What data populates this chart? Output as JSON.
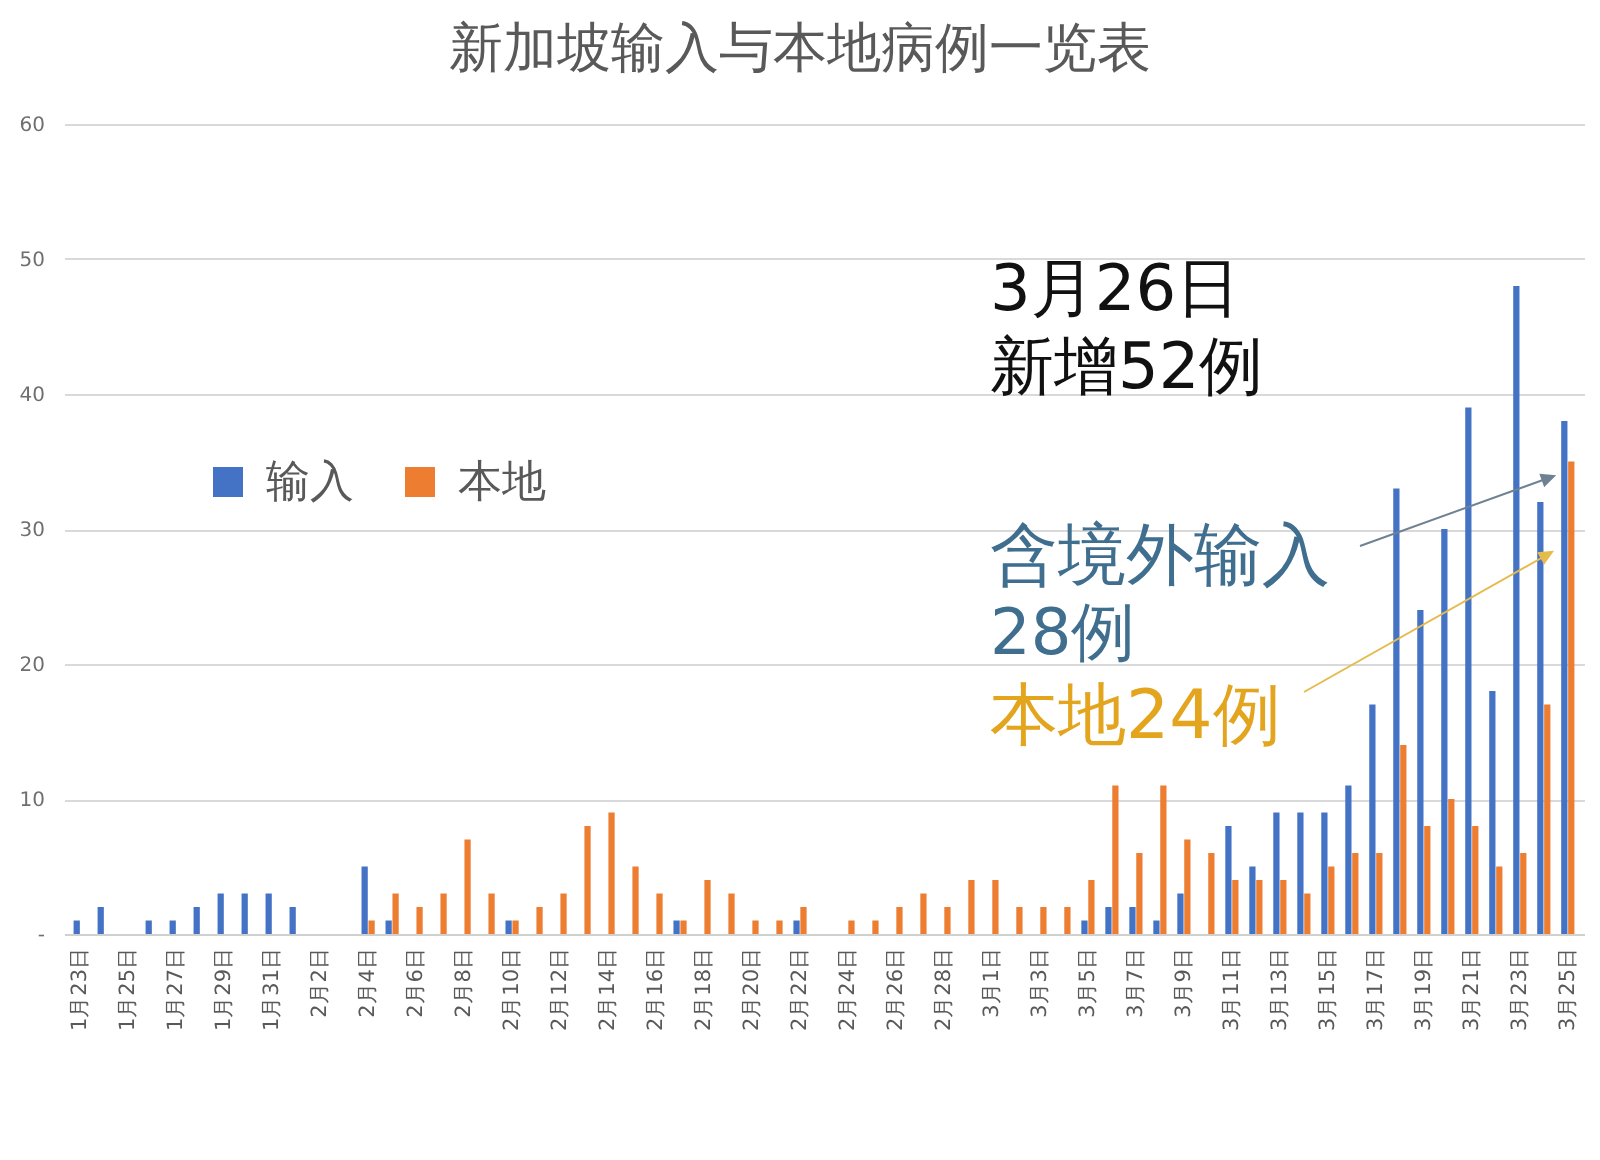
{
  "chart_data": {
    "type": "bar",
    "title": "新加坡输入与本地病例一览表",
    "categories": [
      "1月23日",
      null,
      "1月25日",
      null,
      "1月27日",
      null,
      "1月29日",
      null,
      "1月31日",
      null,
      "2月2日",
      null,
      "2月4日",
      null,
      "2月6日",
      null,
      "2月8日",
      null,
      "2月10日",
      null,
      "2月12日",
      null,
      "2月14日",
      null,
      "2月16日",
      null,
      "2月18日",
      null,
      "2月20日",
      null,
      "2月22日",
      null,
      "2月24日",
      null,
      "2月26日",
      null,
      "2月28日",
      null,
      "3月1日",
      null,
      "3月3日",
      null,
      "3月5日",
      null,
      "3月7日",
      null,
      "3月9日",
      null,
      "3月11日",
      null,
      "3月13日",
      null,
      "3月15日",
      null,
      "3月17日",
      null,
      "3月19日",
      null,
      "3月21日",
      null,
      "3月23日",
      null,
      "3月25日"
    ],
    "series": [
      {
        "name": "输入",
        "color": "#4472c4",
        "values": [
          1,
          2,
          0,
          1,
          1,
          2,
          3,
          3,
          3,
          2,
          0,
          0,
          5,
          1,
          0,
          0,
          0,
          0,
          1,
          0,
          0,
          0,
          0,
          0,
          0,
          1,
          0,
          0,
          0,
          0,
          1,
          0,
          0,
          0,
          0,
          0,
          0,
          0,
          0,
          0,
          0,
          0,
          1,
          2,
          2,
          1,
          3,
          0,
          8,
          5,
          9,
          9,
          9,
          11,
          17,
          33,
          24,
          30,
          39,
          18,
          48,
          32,
          38
        ]
      },
      {
        "name": "本地",
        "color": "#ed7d31",
        "values": [
          0,
          0,
          0,
          0,
          0,
          0,
          0,
          0,
          0,
          0,
          0,
          0,
          1,
          3,
          2,
          3,
          7,
          3,
          1,
          2,
          3,
          8,
          9,
          5,
          3,
          1,
          4,
          3,
          1,
          1,
          2,
          0,
          1,
          1,
          2,
          3,
          2,
          4,
          4,
          2,
          2,
          2,
          4,
          11,
          6,
          11,
          7,
          6,
          4,
          4,
          4,
          3,
          5,
          6,
          6,
          14,
          8,
          10,
          8,
          5,
          6,
          17,
          35
        ]
      }
    ],
    "ylim": [
      0,
      60
    ],
    "yticks": [
      {
        "value": 0,
        "label": "-"
      },
      10,
      20,
      30,
      40,
      50,
      60
    ],
    "grid": "y",
    "legend": "left",
    "annotations": [
      "3月26日",
      "新增52例",
      "含境外输入",
      "28例",
      "本地24例"
    ]
  }
}
